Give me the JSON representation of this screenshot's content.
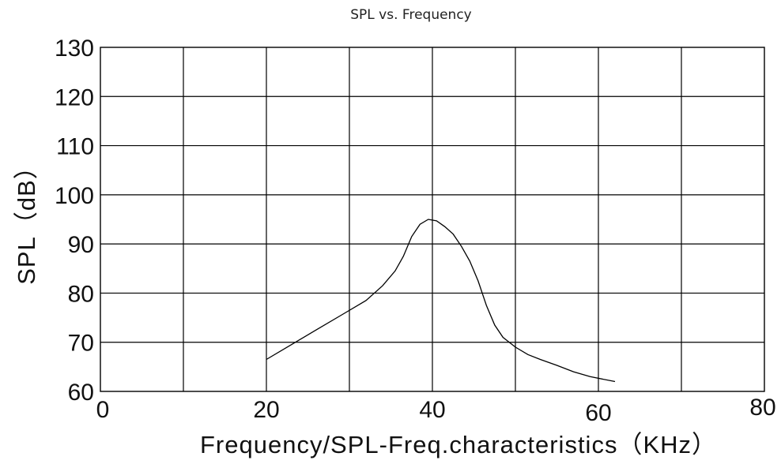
{
  "chart_data": {
    "type": "line",
    "title": "SPL vs. Frequency",
    "xlabel": "Frequency/SPL-Freq.characteristics（KHz）",
    "ylabel": "SPL（dB）",
    "xlim": [
      0,
      80
    ],
    "ylim": [
      60,
      130
    ],
    "x_ticks": [
      "0",
      "20",
      "40",
      "60",
      "80"
    ],
    "y_ticks": [
      "60",
      "70",
      "80",
      "90",
      "100",
      "110",
      "120",
      "130"
    ],
    "x_grid_step": 10,
    "y_grid_step": 10,
    "grid": true,
    "series": [
      {
        "x": [
          20,
          23,
          26,
          29,
          32,
          34,
          35.5,
          36.5,
          37.5,
          38.5,
          39.5,
          40.5,
          41.5,
          42.5,
          43.5,
          44.5,
          45.5,
          46.5,
          47.5,
          48.5,
          50,
          51.5,
          53,
          55,
          57,
          59,
          62
        ],
        "y": [
          66.5,
          69.5,
          72.5,
          75.5,
          78.5,
          81.5,
          84.5,
          87.5,
          91.5,
          94.0,
          95.0,
          94.7,
          93.5,
          92.0,
          89.5,
          86.5,
          82.5,
          77.5,
          73.5,
          71.0,
          69.0,
          67.5,
          66.5,
          65.3,
          64.0,
          63.0,
          62.0
        ]
      }
    ]
  }
}
